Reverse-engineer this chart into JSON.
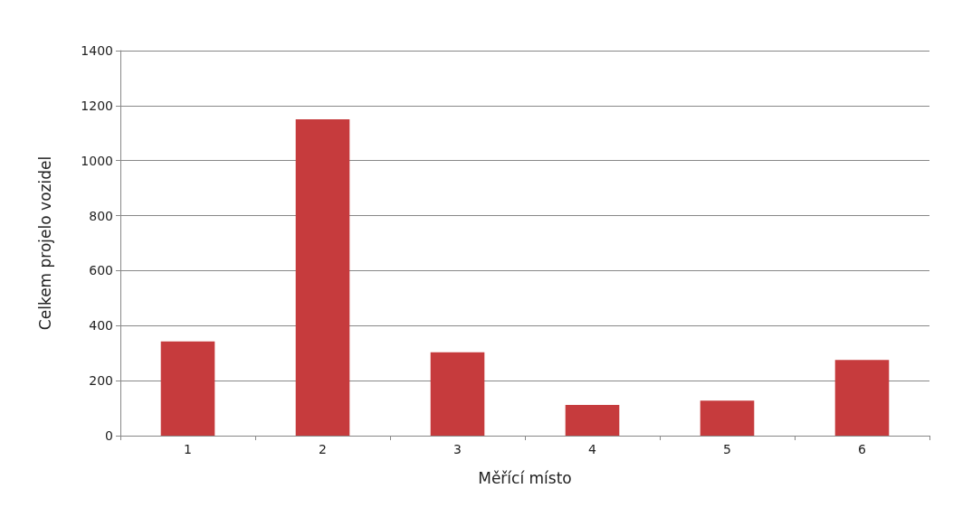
{
  "chart_data": {
    "type": "bar",
    "xlabel": "Měřící místo",
    "ylabel": "Celkem projelo vozidel",
    "categories": [
      "1",
      "2",
      "3",
      "4",
      "5",
      "6"
    ],
    "values": [
      343,
      1150,
      303,
      112,
      127,
      275
    ],
    "color": "#c63b3d",
    "ylim": [
      0,
      1400
    ],
    "yticks": [
      0,
      200,
      400,
      600,
      800,
      1000,
      1200,
      1400
    ],
    "grid": "y"
  }
}
